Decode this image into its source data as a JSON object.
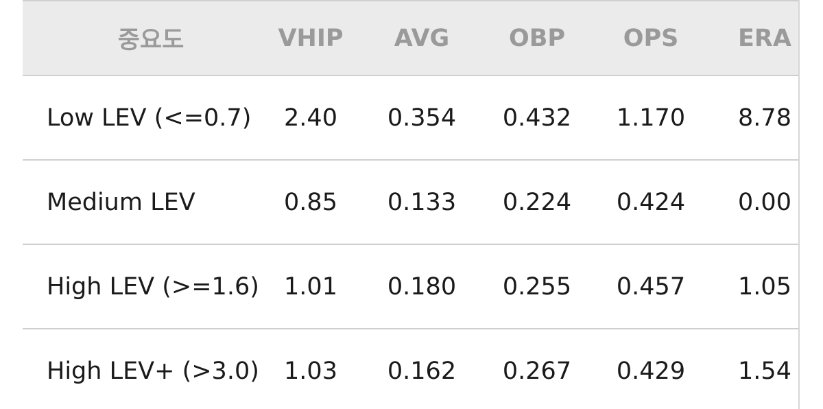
{
  "table": {
    "header": [
      "중요도",
      "VHIP",
      "AVG",
      "OBP",
      "OPS",
      "ERA"
    ],
    "rows": [
      [
        "Low LEV (<=0.7)",
        "2.40",
        "0.354",
        "0.432",
        "1.170",
        "8.78"
      ],
      [
        "Medium LEV",
        "0.85",
        "0.133",
        "0.224",
        "0.424",
        "0.00"
      ],
      [
        "High LEV (>=1.6)",
        "1.01",
        "0.180",
        "0.255",
        "0.457",
        "1.05"
      ],
      [
        "High LEV+ (>3.0)",
        "1.03",
        "0.162",
        "0.267",
        "0.429",
        "1.54"
      ]
    ]
  }
}
